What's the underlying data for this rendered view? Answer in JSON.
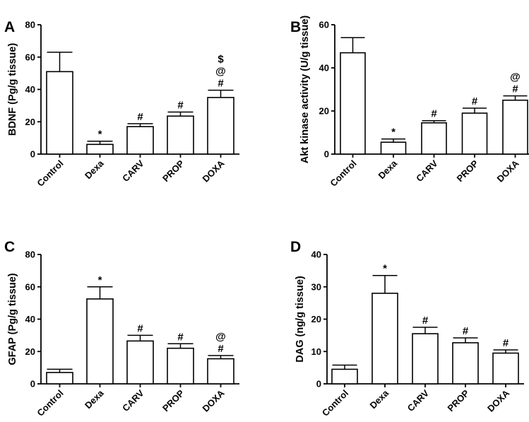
{
  "chart_data": [
    {
      "panel": "A",
      "type": "bar",
      "ylabel": "BDNF (Pg/g tissue)",
      "ylim": [
        0,
        80
      ],
      "yticks": [
        0,
        20,
        40,
        60,
        80
      ],
      "categories": [
        "Control",
        "Dexa",
        "CARV",
        "PROP",
        "DOXA"
      ],
      "values": [
        51,
        6,
        17,
        23.5,
        35
      ],
      "errors": [
        12,
        2,
        1.8,
        2.5,
        4.5
      ],
      "annotations": [
        "",
        "*",
        "#",
        "#",
        "#@$"
      ]
    },
    {
      "panel": "B",
      "type": "bar",
      "ylabel": "Akt kinase activity (U/g tissue)",
      "ylim": [
        0,
        60
      ],
      "yticks": [
        0,
        20,
        40,
        60
      ],
      "categories": [
        "Control",
        "Dexa",
        "CARV",
        "PROP",
        "DOXA"
      ],
      "values": [
        47,
        5.5,
        14.5,
        19,
        25
      ],
      "errors": [
        7,
        1.5,
        1,
        2.3,
        2
      ],
      "annotations": [
        "",
        "*",
        "#",
        "#",
        "#@"
      ]
    },
    {
      "panel": "C",
      "type": "bar",
      "ylabel": "GFAP (Pg/g tissue)",
      "ylim": [
        0,
        80
      ],
      "yticks": [
        0,
        20,
        40,
        60,
        80
      ],
      "categories": [
        "Control",
        "Dexa",
        "CARV",
        "PROP",
        "DOXA"
      ],
      "values": [
        7,
        52.5,
        26.5,
        22,
        15.5
      ],
      "errors": [
        2,
        7.5,
        3.5,
        2.8,
        2
      ],
      "annotations": [
        "",
        "*",
        "#",
        "#",
        "#@"
      ]
    },
    {
      "panel": "D",
      "type": "bar",
      "ylabel": "DAG (ng/g tissue)",
      "ylim": [
        0,
        40
      ],
      "yticks": [
        0,
        10,
        20,
        30,
        40
      ],
      "categories": [
        "Control",
        "Dexa",
        "CARV",
        "PROP",
        "DOXA"
      ],
      "values": [
        4.5,
        28,
        15.5,
        12.7,
        9.5
      ],
      "errors": [
        1.3,
        5.5,
        2,
        1.5,
        1
      ],
      "annotations": [
        "",
        "*",
        "#",
        "#",
        "#"
      ]
    }
  ]
}
